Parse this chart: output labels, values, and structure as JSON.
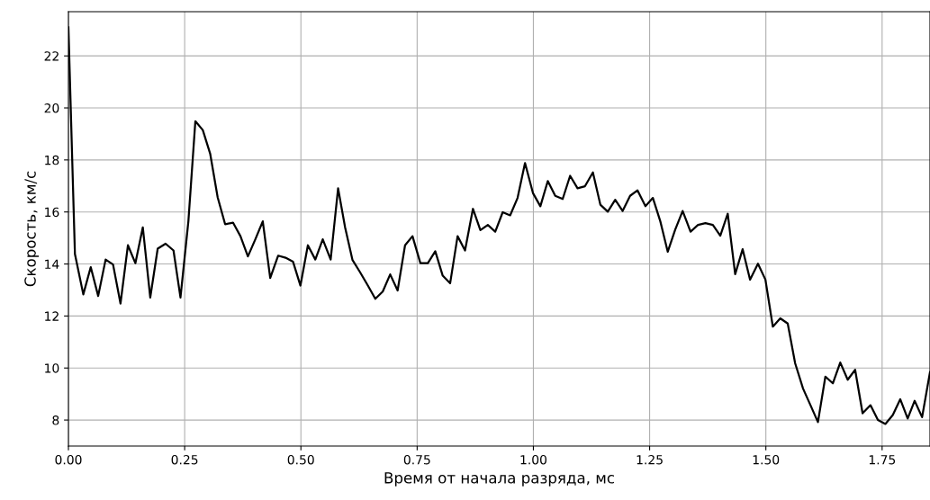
{
  "chart_data": {
    "type": "line",
    "xlabel": "Время от начала разряда, мс",
    "ylabel": "Скорость, км/с",
    "xlim": [
      0,
      1.853
    ],
    "ylim": [
      7.0,
      23.7
    ],
    "xticks": [
      {
        "value": 0,
        "label": "0.00"
      },
      {
        "value": 0.25,
        "label": "0.25"
      },
      {
        "value": 0.5,
        "label": "0.50"
      },
      {
        "value": 0.75,
        "label": "0.75"
      },
      {
        "value": 1.0,
        "label": "1.00"
      },
      {
        "value": 1.25,
        "label": "1.25"
      },
      {
        "value": 1.5,
        "label": "1.50"
      },
      {
        "value": 1.75,
        "label": "1.75"
      }
    ],
    "yticks": [
      8,
      10,
      12,
      14,
      16,
      18,
      20,
      22
    ],
    "grid": true,
    "legend": false,
    "marker": "none",
    "line_style": "solid",
    "x": [
      0,
      0.014,
      0.032,
      0.048,
      0.064,
      0.08,
      0.096,
      0.112,
      0.128,
      0.144,
      0.16,
      0.176,
      0.192,
      0.209,
      0.226,
      0.241,
      0.258,
      0.273,
      0.289,
      0.305,
      0.321,
      0.337,
      0.354,
      0.37,
      0.386,
      0.402,
      0.418,
      0.434,
      0.451,
      0.467,
      0.483,
      0.499,
      0.515,
      0.531,
      0.547,
      0.564,
      0.58,
      0.595,
      0.611,
      0.627,
      0.644,
      0.66,
      0.676,
      0.692,
      0.708,
      0.724,
      0.74,
      0.757,
      0.773,
      0.789,
      0.805,
      0.821,
      0.837,
      0.853,
      0.87,
      0.886,
      0.902,
      0.918,
      0.934,
      0.95,
      0.966,
      0.982,
      0.999,
      1.015,
      1.031,
      1.047,
      1.063,
      1.079,
      1.095,
      1.111,
      1.128,
      1.144,
      1.16,
      1.176,
      1.192,
      1.208,
      1.224,
      1.241,
      1.257,
      1.273,
      1.289,
      1.305,
      1.321,
      1.338,
      1.354,
      1.37,
      1.386,
      1.402,
      1.418,
      1.434,
      1.45,
      1.466,
      1.483,
      1.499,
      1.515,
      1.531,
      1.547,
      1.563,
      1.58,
      1.596,
      1.612,
      1.628,
      1.644,
      1.66,
      1.676,
      1.692,
      1.708,
      1.725,
      1.741,
      1.757,
      1.773,
      1.789,
      1.805,
      1.82,
      1.836,
      1.853
    ],
    "series": [
      {
        "color": "#000000",
        "values": [
          23.1,
          14.38,
          12.83,
          13.88,
          12.77,
          14.17,
          13.98,
          12.48,
          14.72,
          14.03,
          15.41,
          12.71,
          14.59,
          14.78,
          14.52,
          12.71,
          15.64,
          19.49,
          19.15,
          18.23,
          16.56,
          15.53,
          15.59,
          15.07,
          14.29,
          14.95,
          15.64,
          13.46,
          14.32,
          14.24,
          14.09,
          13.17,
          14.72,
          14.17,
          14.95,
          14.17,
          16.91,
          15.41,
          14.15,
          13.69,
          13.17,
          12.66,
          12.94,
          13.6,
          12.98,
          14.72,
          15.07,
          14.03,
          14.03,
          14.49,
          13.55,
          13.26,
          15.07,
          14.52,
          16.12,
          15.3,
          15.5,
          15.24,
          15.99,
          15.87,
          16.54,
          17.88,
          16.73,
          16.22,
          17.19,
          16.62,
          16.5,
          17.39,
          16.91,
          16.99,
          17.52,
          16.28,
          16.01,
          16.47,
          16.04,
          16.62,
          16.83,
          16.22,
          16.54,
          15.64,
          14.47,
          15.32,
          16.04,
          15.24,
          15.5,
          15.57,
          15.5,
          15.09,
          15.93,
          13.61,
          14.57,
          13.4,
          14.01,
          13.4,
          11.59,
          11.91,
          11.71,
          10.18,
          9.21,
          8.57,
          7.92,
          9.67,
          9.41,
          10.21,
          9.55,
          9.93,
          8.26,
          8.57,
          8.0,
          7.85,
          8.19,
          8.8,
          8.06,
          8.74,
          8.11,
          9.84
        ]
      }
    ]
  }
}
